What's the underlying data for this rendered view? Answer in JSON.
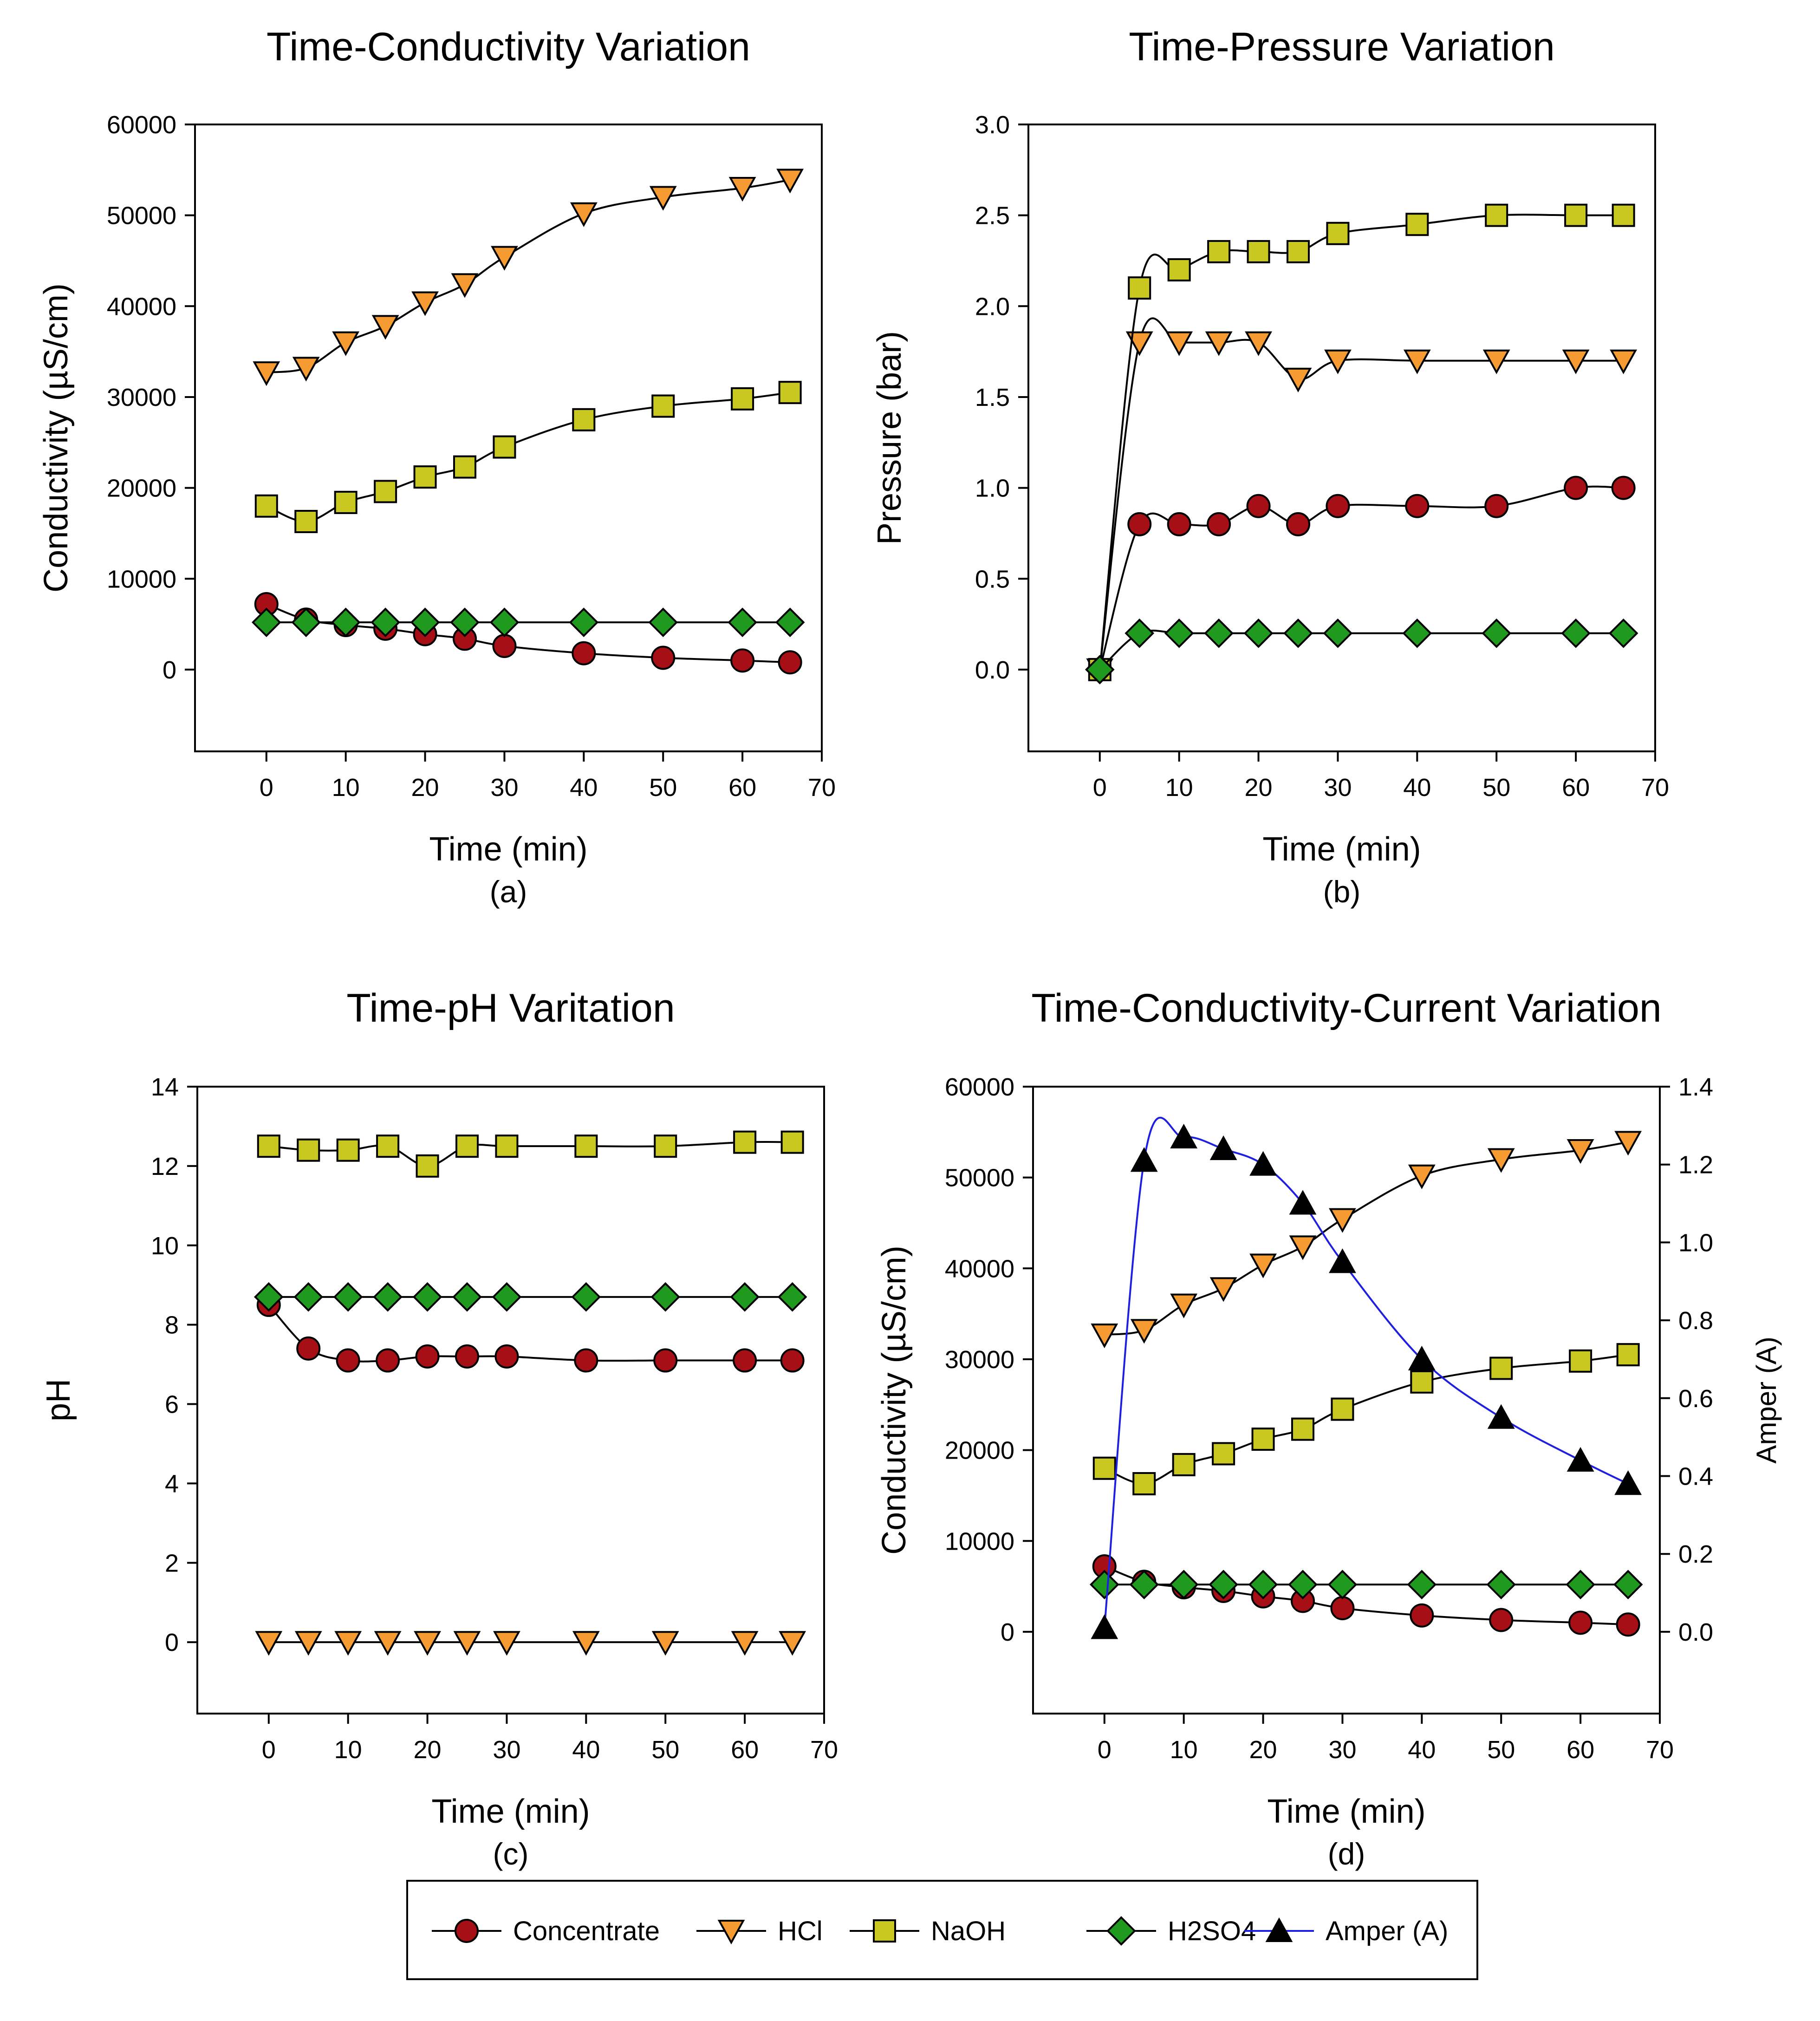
{
  "legend": {
    "items": [
      {
        "key": "concentrate",
        "label": "Concentrate",
        "marker": "circle",
        "fill": "#a50f15",
        "line": "#000000"
      },
      {
        "key": "hcl",
        "label": "HCl",
        "marker": "triangle-down",
        "fill": "#f59b32",
        "line": "#000000"
      },
      {
        "key": "naoh",
        "label": "NaOH",
        "marker": "square",
        "fill": "#c8c820",
        "line": "#000000"
      },
      {
        "key": "h2so4",
        "label": "H2SO4",
        "marker": "diamond",
        "fill": "#1f9a1f",
        "line": "#000000"
      },
      {
        "key": "amper",
        "label": "Amper (A)",
        "marker": "triangle-up",
        "fill": "#000000",
        "line": "#1f1fdf"
      }
    ]
  },
  "chart_data": [
    {
      "id": "a",
      "type": "line",
      "title": "Time-Conductivity Variation",
      "caption": "(a)",
      "xlabel": "Time (min)",
      "ylabel": "Conductivity (µS/cm)",
      "xlim": [
        -9,
        70
      ],
      "ylim": [
        -9000,
        60000
      ],
      "xticks": [
        0,
        10,
        20,
        30,
        40,
        50,
        60,
        70
      ],
      "xtick_labels": [
        "0",
        "10",
        "20",
        "30",
        "40",
        "50",
        "60",
        "70"
      ],
      "yticks": [
        0,
        10000,
        20000,
        30000,
        40000,
        50000,
        60000
      ],
      "ytick_labels": [
        "0",
        "10000",
        "20000",
        "30000",
        "40000",
        "50000",
        "60000"
      ],
      "x": [
        0,
        5,
        10,
        15,
        20,
        25,
        30,
        40,
        50,
        60,
        66
      ],
      "series": [
        {
          "key": "concentrate",
          "values": [
            7200,
            5500,
            4900,
            4500,
            3900,
            3400,
            2600,
            1800,
            1300,
            1000,
            800
          ]
        },
        {
          "key": "hcl",
          "values": [
            32700,
            33200,
            36000,
            37800,
            40400,
            42400,
            45400,
            50200,
            52000,
            53000,
            53900
          ]
        },
        {
          "key": "naoh",
          "values": [
            18000,
            16300,
            18400,
            19600,
            21200,
            22300,
            24500,
            27500,
            29000,
            29800,
            30500
          ]
        },
        {
          "key": "h2so4",
          "values": [
            5200,
            5200,
            5200,
            5200,
            5200,
            5200,
            5200,
            5200,
            5200,
            5200,
            5200
          ]
        }
      ]
    },
    {
      "id": "b",
      "type": "line",
      "title": "Time-Pressure Variation",
      "caption": "(b)",
      "xlabel": "Time (min)",
      "ylabel": "Pressure (bar)",
      "xlim": [
        -9,
        70
      ],
      "ylim": [
        -0.45,
        3.0
      ],
      "xticks": [
        0,
        10,
        20,
        30,
        40,
        50,
        60,
        70
      ],
      "xtick_labels": [
        "0",
        "10",
        "20",
        "30",
        "40",
        "50",
        "60",
        "70"
      ],
      "yticks": [
        0,
        0.5,
        1.0,
        1.5,
        2.0,
        2.5,
        3.0
      ],
      "ytick_labels": [
        "0.0",
        "0.5",
        "1.0",
        "1.5",
        "2.0",
        "2.5",
        "3.0"
      ],
      "x": [
        0,
        5,
        10,
        15,
        20,
        25,
        30,
        40,
        50,
        60,
        66
      ],
      "series": [
        {
          "key": "concentrate",
          "values": [
            0,
            0.8,
            0.8,
            0.8,
            0.9,
            0.8,
            0.9,
            0.9,
            0.9,
            1.0,
            1.0
          ]
        },
        {
          "key": "hcl",
          "values": [
            0,
            1.8,
            1.8,
            1.8,
            1.8,
            1.6,
            1.7,
            1.7,
            1.7,
            1.7,
            1.7
          ]
        },
        {
          "key": "naoh",
          "values": [
            0,
            2.1,
            2.2,
            2.3,
            2.3,
            2.3,
            2.4,
            2.45,
            2.5,
            2.5,
            2.5
          ]
        },
        {
          "key": "h2so4",
          "values": [
            0,
            0.2,
            0.2,
            0.2,
            0.2,
            0.2,
            0.2,
            0.2,
            0.2,
            0.2,
            0.2
          ]
        }
      ]
    },
    {
      "id": "c",
      "type": "line",
      "title": "Time-pH Varitation",
      "caption": "(c)",
      "xlabel": "Time (min)",
      "ylabel": "pH",
      "xlim": [
        -9,
        70
      ],
      "ylim": [
        -1.8,
        14
      ],
      "xticks": [
        0,
        10,
        20,
        30,
        40,
        50,
        60,
        70
      ],
      "xtick_labels": [
        "0",
        "10",
        "20",
        "30",
        "40",
        "50",
        "60",
        "70"
      ],
      "yticks": [
        0,
        2,
        4,
        6,
        8,
        10,
        12,
        14
      ],
      "ytick_labels": [
        "0",
        "2",
        "4",
        "6",
        "8",
        "10",
        "12",
        "14"
      ],
      "x": [
        0,
        5,
        10,
        15,
        20,
        25,
        30,
        40,
        50,
        60,
        66
      ],
      "series": [
        {
          "key": "concentrate",
          "values": [
            8.5,
            7.4,
            7.1,
            7.1,
            7.2,
            7.2,
            7.2,
            7.1,
            7.1,
            7.1,
            7.1
          ]
        },
        {
          "key": "hcl",
          "values": [
            0,
            0,
            0,
            0,
            0,
            0,
            0,
            0,
            0,
            0,
            0
          ]
        },
        {
          "key": "naoh",
          "values": [
            12.5,
            12.4,
            12.4,
            12.5,
            12.0,
            12.5,
            12.5,
            12.5,
            12.5,
            12.6,
            12.6
          ]
        },
        {
          "key": "h2so4",
          "values": [
            8.7,
            8.7,
            8.7,
            8.7,
            8.7,
            8.7,
            8.7,
            8.7,
            8.7,
            8.7,
            8.7
          ]
        }
      ]
    },
    {
      "id": "d",
      "type": "line",
      "title": "Time-Conductivity-Current Variation",
      "caption": "(d)",
      "xlabel": "Time (min)",
      "ylabel": "Conductivity (µS/cm)",
      "y2label": "Amper (A)",
      "xlim": [
        -9,
        70
      ],
      "ylim": [
        -9000,
        60000
      ],
      "y2lim": [
        -0.21,
        1.4
      ],
      "xticks": [
        0,
        10,
        20,
        30,
        40,
        50,
        60,
        70
      ],
      "xtick_labels": [
        "0",
        "10",
        "20",
        "30",
        "40",
        "50",
        "60",
        "70"
      ],
      "yticks": [
        0,
        10000,
        20000,
        30000,
        40000,
        50000,
        60000
      ],
      "ytick_labels": [
        "0",
        "10000",
        "20000",
        "30000",
        "40000",
        "50000",
        "60000"
      ],
      "y2ticks": [
        0,
        0.2,
        0.4,
        0.6,
        0.8,
        1.0,
        1.2,
        1.4
      ],
      "y2tick_labels": [
        "0.0",
        "0.2",
        "0.4",
        "0.6",
        "0.8",
        "1.0",
        "1.2",
        "1.4"
      ],
      "x": [
        0,
        5,
        10,
        15,
        20,
        25,
        30,
        40,
        50,
        60,
        66
      ],
      "series": [
        {
          "key": "concentrate",
          "values": [
            7200,
            5500,
            4900,
            4500,
            3900,
            3400,
            2600,
            1800,
            1300,
            1000,
            800
          ]
        },
        {
          "key": "hcl",
          "values": [
            32700,
            33200,
            36000,
            37800,
            40400,
            42400,
            45400,
            50200,
            52000,
            53000,
            53900
          ]
        },
        {
          "key": "naoh",
          "values": [
            18000,
            16300,
            18400,
            19600,
            21200,
            22300,
            24500,
            27500,
            29000,
            29800,
            30500
          ]
        },
        {
          "key": "h2so4",
          "values": [
            5200,
            5200,
            5200,
            5200,
            5200,
            5200,
            5200,
            5200,
            5200,
            5200,
            5200
          ]
        },
        {
          "key": "amper",
          "axis": "y2",
          "values": [
            0.01,
            1.21,
            1.27,
            1.24,
            1.2,
            1.1,
            0.95,
            0.7,
            0.55,
            0.44,
            0.38
          ]
        }
      ]
    }
  ]
}
